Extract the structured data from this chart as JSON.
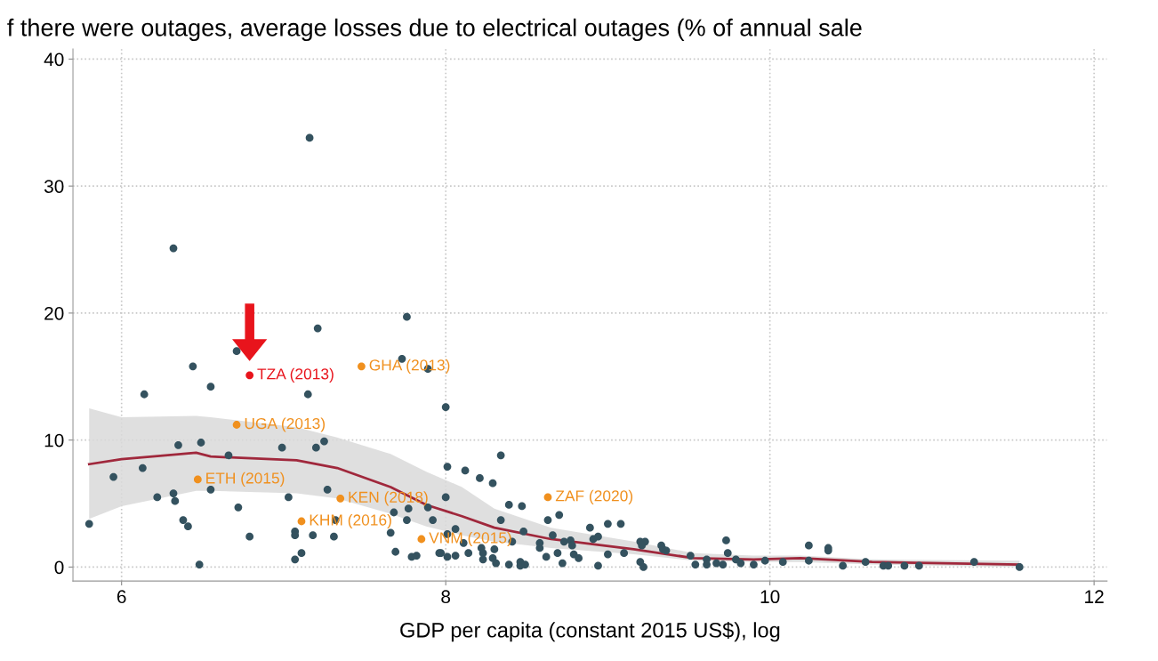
{
  "chart_data": {
    "type": "scatter",
    "title": "f there were outages, average losses due to electrical outages (% of annual sale",
    "xlabel": "GDP per capita (constant 2015 US$), log",
    "xlim": [
      5.7,
      12.08
    ],
    "ylim": [
      -1.1,
      40.8
    ],
    "xticks": [
      6,
      8,
      10,
      12
    ],
    "yticks": [
      0,
      10,
      20,
      30,
      40
    ],
    "grid": true,
    "series": [
      {
        "marker": "circle",
        "color": "#34525f",
        "x": [
          7.16,
          6.32,
          7.76,
          7.21,
          6.71,
          6.44,
          7.73,
          7.89,
          6.55,
          6.14,
          7.15,
          8.0,
          6.35,
          6.49,
          6.99,
          7.2,
          7.25,
          6.66,
          5.95,
          6.13,
          8.01,
          5.8,
          6.22,
          6.32,
          6.33,
          6.55,
          6.72,
          7.03,
          7.27,
          6.38,
          6.41,
          6.48,
          6.79,
          7.07,
          7.07,
          7.18,
          7.31,
          7.32,
          7.07,
          7.11,
          8.0,
          7.68,
          7.77,
          7.76,
          7.89,
          7.92,
          7.66,
          7.69,
          7.79,
          7.82,
          7.96,
          8.01,
          8.06,
          8.01,
          8.06,
          8.34,
          8.12,
          8.21,
          8.29,
          8.39,
          8.47,
          8.34,
          8.7,
          8.63,
          8.89,
          9.0,
          9.08,
          8.48,
          8.66,
          8.91,
          8.94,
          8.11,
          8.22,
          8.41,
          8.58,
          8.58,
          8.73,
          8.77,
          8.78,
          8.69,
          8.79,
          8.82,
          9.2,
          9.23,
          9.21,
          9.2,
          9.22,
          9.0,
          9.1,
          9.33,
          9.34,
          9.36,
          8.23,
          8.23,
          8.3,
          8.29,
          8.31,
          8.39,
          8.46,
          8.46,
          8.49,
          8.62,
          8.72,
          8.94,
          7.97,
          8.14,
          9.51,
          9.54,
          9.61,
          9.61,
          9.67,
          9.71,
          9.73,
          9.74,
          9.79,
          9.82,
          9.9,
          9.97,
          10.08,
          10.24,
          10.24,
          10.36,
          10.36,
          10.45,
          10.59,
          10.7,
          10.73,
          10.83,
          10.92,
          11.26,
          11.54
        ],
        "values": [
          33.8,
          25.1,
          19.7,
          18.8,
          17.0,
          15.8,
          16.4,
          15.6,
          14.2,
          13.6,
          13.6,
          12.6,
          9.6,
          9.8,
          9.4,
          9.4,
          9.9,
          8.8,
          7.1,
          7.8,
          7.9,
          3.4,
          5.5,
          5.8,
          5.2,
          6.1,
          4.7,
          5.5,
          6.1,
          3.7,
          3.2,
          0.2,
          2.4,
          2.8,
          2.5,
          2.5,
          2.4,
          3.7,
          0.6,
          1.1,
          5.5,
          4.3,
          4.6,
          3.7,
          4.7,
          3.7,
          2.7,
          1.2,
          0.8,
          0.9,
          1.1,
          0.8,
          0.9,
          2.6,
          3.0,
          8.8,
          7.6,
          7.0,
          6.6,
          4.9,
          4.8,
          3.7,
          4.1,
          3.7,
          3.1,
          3.4,
          3.4,
          2.8,
          2.5,
          2.2,
          2.4,
          1.9,
          1.5,
          2.0,
          1.9,
          1.5,
          2.0,
          2.1,
          1.7,
          1.1,
          1.0,
          0.7,
          2.0,
          2.0,
          1.7,
          0.4,
          0.0,
          1.0,
          1.1,
          1.7,
          1.4,
          1.3,
          1.1,
          0.6,
          1.4,
          0.7,
          0.3,
          0.2,
          0.4,
          0.1,
          0.2,
          0.8,
          0.3,
          0.1,
          1.1,
          1.1,
          0.9,
          0.2,
          0.6,
          0.2,
          0.3,
          0.2,
          2.1,
          1.1,
          0.6,
          0.3,
          0.2,
          0.5,
          0.4,
          1.7,
          0.5,
          1.5,
          1.3,
          0.1,
          0.4,
          0.1,
          0.1,
          0.1,
          0.1,
          0.4,
          0.0
        ]
      },
      {
        "marker": "circle",
        "color": "#f0901e",
        "x": [
          7.48,
          6.71,
          6.47,
          7.35,
          7.11,
          7.85,
          8.63
        ],
        "values": [
          15.8,
          11.2,
          6.9,
          5.4,
          3.6,
          2.2,
          5.5
        ]
      },
      {
        "marker": "circle",
        "color": "#e8141c",
        "x": [
          6.79
        ],
        "values": [
          15.1
        ]
      },
      {
        "type": "line",
        "color": "#a0283c",
        "x": [
          5.8,
          6.0,
          6.46,
          6.55,
          7.08,
          7.33,
          7.66,
          7.88,
          8.1,
          8.3,
          8.65,
          9.16,
          9.53,
          9.9,
          10.19,
          10.63,
          11.54
        ],
        "values": [
          8.1,
          8.5,
          9.0,
          8.7,
          8.4,
          7.8,
          6.3,
          4.9,
          4.0,
          3.1,
          2.2,
          1.4,
          0.7,
          0.6,
          0.7,
          0.4,
          0.2
        ],
        "upper": [
          12.5,
          11.8,
          11.9,
          11.8,
          11.0,
          10.2,
          8.9,
          7.5,
          6.3,
          4.6,
          3.1,
          2.0,
          1.1,
          0.9,
          0.9,
          0.6,
          0.5
        ],
        "lower": [
          3.8,
          4.8,
          6.0,
          6.0,
          5.8,
          5.4,
          4.2,
          3.2,
          2.5,
          2.0,
          1.5,
          1.0,
          0.5,
          0.4,
          0.4,
          0.2,
          0.0
        ]
      }
    ],
    "annotations": [
      {
        "text": "TZA (2013)",
        "x": 6.79,
        "y": 15.1
      },
      {
        "text": "GHA (2013)",
        "x": 7.48,
        "y": 15.8
      },
      {
        "text": "UGA (2013)",
        "x": 6.71,
        "y": 11.2
      },
      {
        "text": "ETH (2015)",
        "x": 6.47,
        "y": 6.9
      },
      {
        "text": "KEN (2018)",
        "x": 7.35,
        "y": 5.4
      },
      {
        "text": "KHM (2016)",
        "x": 7.11,
        "y": 3.6
      },
      {
        "text": "VNM (2015)",
        "x": 7.85,
        "y": 2.2
      },
      {
        "text": "ZAF (2020)",
        "x": 8.63,
        "y": 5.5
      }
    ]
  }
}
